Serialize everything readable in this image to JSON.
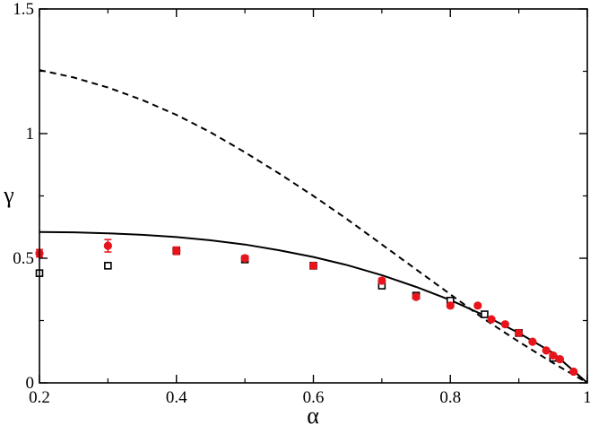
{
  "chart_data": {
    "type": "scatter",
    "xlabel": "α",
    "ylabel": "γ",
    "xlim": [
      0.2,
      1.0
    ],
    "ylim": [
      0,
      1.5
    ],
    "xticks": [
      {
        "value": 0.2,
        "label": "0.2"
      },
      {
        "value": 0.4,
        "label": "0.4"
      },
      {
        "value": 0.6,
        "label": "0.6"
      },
      {
        "value": 0.8,
        "label": "0.8"
      },
      {
        "value": 1.0,
        "label": "1"
      }
    ],
    "yticks": [
      {
        "value": 0,
        "label": "0"
      },
      {
        "value": 0.5,
        "label": "0.5"
      },
      {
        "value": 1.0,
        "label": "1"
      },
      {
        "value": 1.5,
        "label": "1.5"
      }
    ],
    "grid": false,
    "series": [
      {
        "kind": "line",
        "style": "dashed",
        "color": "#000000",
        "points": [
          [
            0.2,
            1.255
          ],
          [
            0.25,
            1.225
          ],
          [
            0.3,
            1.185
          ],
          [
            0.35,
            1.135
          ],
          [
            0.4,
            1.075
          ],
          [
            0.45,
            1.005
          ],
          [
            0.5,
            0.925
          ],
          [
            0.55,
            0.84
          ],
          [
            0.6,
            0.75
          ],
          [
            0.65,
            0.655
          ],
          [
            0.7,
            0.555
          ],
          [
            0.75,
            0.455
          ],
          [
            0.8,
            0.355
          ],
          [
            0.85,
            0.255
          ],
          [
            0.9,
            0.165
          ],
          [
            0.95,
            0.08
          ],
          [
            1.0,
            0.0
          ]
        ]
      },
      {
        "kind": "line",
        "style": "solid",
        "color": "#000000",
        "points": [
          [
            0.2,
            0.605
          ],
          [
            0.25,
            0.604
          ],
          [
            0.3,
            0.6
          ],
          [
            0.35,
            0.594
          ],
          [
            0.4,
            0.585
          ],
          [
            0.45,
            0.572
          ],
          [
            0.5,
            0.555
          ],
          [
            0.55,
            0.532
          ],
          [
            0.6,
            0.505
          ],
          [
            0.65,
            0.472
          ],
          [
            0.7,
            0.432
          ],
          [
            0.75,
            0.385
          ],
          [
            0.8,
            0.332
          ],
          [
            0.85,
            0.27
          ],
          [
            0.9,
            0.2
          ],
          [
            0.95,
            0.12
          ],
          [
            1.0,
            0.0
          ]
        ]
      },
      {
        "kind": "points",
        "marker": "square-open",
        "color": "#000000",
        "points": [
          {
            "x": 0.2,
            "y": 0.44,
            "err": 0.01
          },
          {
            "x": 0.3,
            "y": 0.47,
            "err": 0.012
          },
          {
            "x": 0.4,
            "y": 0.53,
            "err": 0.012
          },
          {
            "x": 0.5,
            "y": 0.495,
            "err": 0.01
          },
          {
            "x": 0.6,
            "y": 0.47,
            "err": 0.01
          },
          {
            "x": 0.7,
            "y": 0.39,
            "err": 0.008
          },
          {
            "x": 0.75,
            "y": 0.35,
            "err": 0.008
          },
          {
            "x": 0.8,
            "y": 0.33,
            "err": 0.008
          },
          {
            "x": 0.85,
            "y": 0.275,
            "err": 0.006
          },
          {
            "x": 0.9,
            "y": 0.2,
            "err": 0.006
          },
          {
            "x": 0.95,
            "y": 0.1,
            "err": 0.005
          }
        ]
      },
      {
        "kind": "points",
        "marker": "circle-filled",
        "color": "#e8141c",
        "points": [
          {
            "x": 0.2,
            "y": 0.52,
            "err": 0.015
          },
          {
            "x": 0.3,
            "y": 0.55,
            "err": 0.025
          },
          {
            "x": 0.4,
            "y": 0.53,
            "err": 0.015
          },
          {
            "x": 0.5,
            "y": 0.5,
            "err": 0.01
          },
          {
            "x": 0.6,
            "y": 0.47,
            "err": 0.01
          },
          {
            "x": 0.7,
            "y": 0.41,
            "err": 0.01
          },
          {
            "x": 0.75,
            "y": 0.345,
            "err": 0.008
          },
          {
            "x": 0.8,
            "y": 0.31,
            "err": 0.008
          },
          {
            "x": 0.84,
            "y": 0.31,
            "err": 0.006
          },
          {
            "x": 0.86,
            "y": 0.255,
            "err": 0.006
          },
          {
            "x": 0.88,
            "y": 0.235,
            "err": 0.005
          },
          {
            "x": 0.9,
            "y": 0.2,
            "err": 0.005
          },
          {
            "x": 0.92,
            "y": 0.165,
            "err": 0.005
          },
          {
            "x": 0.94,
            "y": 0.13,
            "err": 0.004
          },
          {
            "x": 0.95,
            "y": 0.11,
            "err": 0.004
          },
          {
            "x": 0.96,
            "y": 0.095,
            "err": 0.004
          },
          {
            "x": 0.98,
            "y": 0.045,
            "err": 0.003
          }
        ]
      }
    ]
  }
}
